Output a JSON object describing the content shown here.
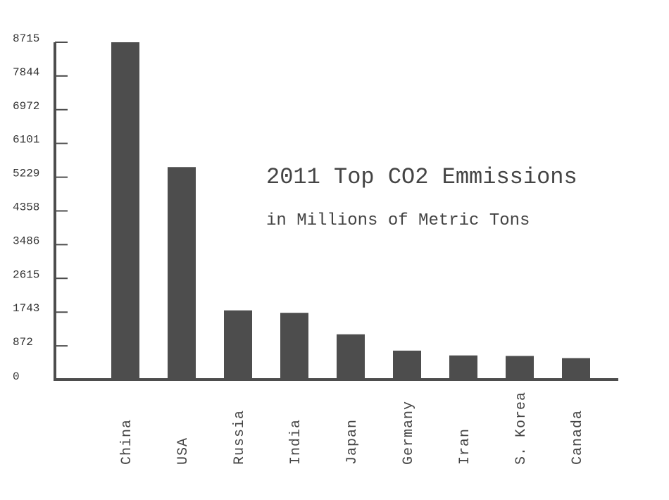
{
  "chart_data": {
    "type": "bar",
    "title": "2011 Top CO2 Emmissions",
    "subtitle": "in Millions of Metric Tons",
    "xlabel": "",
    "ylabel": "",
    "categories": [
      "China",
      "USA",
      "Russia",
      "India",
      "Japan",
      "Germany",
      "Iran",
      "S. Korea",
      "Canada"
    ],
    "values": [
      8715,
      5490,
      1788,
      1725,
      1170,
      748,
      624,
      611,
      555
    ],
    "ylim": [
      0,
      8715
    ],
    "yticks": [
      0,
      872,
      1743,
      2615,
      3486,
      4358,
      5229,
      6101,
      6972,
      7844,
      8715
    ],
    "grid": false,
    "legend": "none",
    "bar_color": "#4d4d4d",
    "axis_color": "#4d4d4d"
  }
}
